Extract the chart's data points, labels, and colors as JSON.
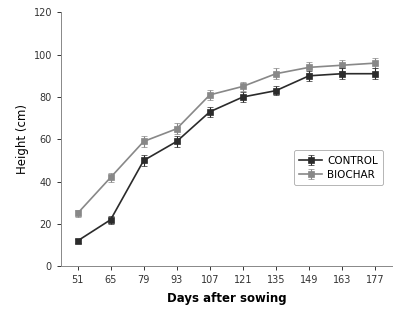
{
  "x": [
    51,
    65,
    79,
    93,
    107,
    121,
    135,
    149,
    163,
    177
  ],
  "control_y": [
    12,
    22,
    50,
    59,
    73,
    80,
    83,
    90,
    91,
    91
  ],
  "biochar_y": [
    25,
    42,
    59,
    65,
    81,
    85,
    91,
    94,
    95,
    96
  ],
  "control_err": [
    1.0,
    2.0,
    2.5,
    2.5,
    2.5,
    2.5,
    2.0,
    2.5,
    2.5,
    2.5
  ],
  "biochar_err": [
    1.5,
    2.0,
    2.5,
    2.5,
    2.5,
    2.0,
    2.5,
    2.5,
    2.5,
    2.5
  ],
  "control_color": "#2b2b2b",
  "biochar_color": "#888888",
  "xlabel": "Days after sowing",
  "ylabel": "Height (cm)",
  "ylim": [
    0,
    120
  ],
  "yticks": [
    0,
    20,
    40,
    60,
    80,
    100,
    120
  ],
  "xlim": [
    44,
    184
  ],
  "xticks": [
    51,
    65,
    79,
    93,
    107,
    121,
    135,
    149,
    163,
    177
  ],
  "control_label": "CONTROL",
  "biochar_label": "BIOCHAR",
  "marker_control": "s",
  "marker_biochar": "s",
  "linewidth": 1.2,
  "markersize": 4.5,
  "bg_color": "#ffffff"
}
